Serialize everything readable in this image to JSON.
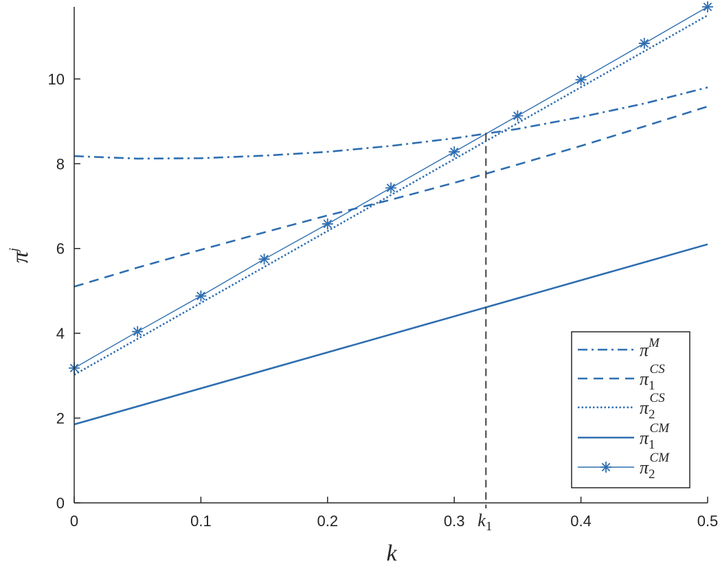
{
  "chart_data": {
    "type": "line",
    "title": "",
    "xlabel": "k",
    "ylabel": "π",
    "ylabel_sup": "j",
    "xlim": [
      0,
      0.5
    ],
    "ylim": [
      0,
      11.7
    ],
    "xticks": [
      0,
      0.1,
      0.2,
      0.3,
      0.4,
      0.5
    ],
    "xtick_labels": [
      "0",
      "0.1",
      "0.2",
      "0.3",
      "0.4",
      "0.5"
    ],
    "yticks": [
      0,
      2,
      4,
      6,
      8,
      10
    ],
    "ytick_labels": [
      "0",
      "2",
      "4",
      "6",
      "8",
      "10"
    ],
    "grid": false,
    "legend_position": "bottom-right",
    "line_color": "#2e6eb0",
    "series": [
      {
        "name": "π",
        "sup": "M",
        "sub": "",
        "style": "dashdot",
        "marker": "none",
        "x": [
          0,
          0.05,
          0.1,
          0.15,
          0.2,
          0.25,
          0.3,
          0.325,
          0.35,
          0.4,
          0.45,
          0.5
        ],
        "y": [
          8.18,
          8.12,
          8.13,
          8.19,
          8.28,
          8.42,
          8.6,
          8.71,
          8.82,
          9.1,
          9.42,
          9.8
        ]
      },
      {
        "name": "π",
        "sup": "CS",
        "sub": "1",
        "style": "dashed",
        "marker": "none",
        "x": [
          0,
          0.05,
          0.1,
          0.15,
          0.2,
          0.25,
          0.3,
          0.35,
          0.4,
          0.45,
          0.5
        ],
        "y": [
          5.1,
          5.55,
          5.97,
          6.38,
          6.78,
          7.15,
          7.55,
          7.98,
          8.42,
          8.88,
          9.35
        ]
      },
      {
        "name": "π",
        "sup": "CS",
        "sub": "2",
        "style": "dotted",
        "marker": "none",
        "x": [
          0,
          0.5
        ],
        "y": [
          3.02,
          11.5
        ]
      },
      {
        "name": "π",
        "sup": "CM",
        "sub": "1",
        "style": "solid",
        "marker": "none",
        "x": [
          0,
          0.5
        ],
        "y": [
          1.85,
          6.1
        ]
      },
      {
        "name": "π",
        "sup": "CM",
        "sub": "2",
        "style": "thin",
        "marker": "asterisk",
        "x": [
          0,
          0.05,
          0.1,
          0.15,
          0.2,
          0.25,
          0.3,
          0.35,
          0.4,
          0.45,
          0.5
        ],
        "y": [
          3.18,
          4.04,
          4.88,
          5.75,
          6.58,
          7.43,
          8.28,
          9.13,
          9.98,
          10.84,
          11.7
        ]
      }
    ],
    "vline": {
      "x": 0.325,
      "y_top": 8.71,
      "label": "k",
      "label_sub": "1",
      "style": "dashed",
      "color": "#404040"
    }
  }
}
